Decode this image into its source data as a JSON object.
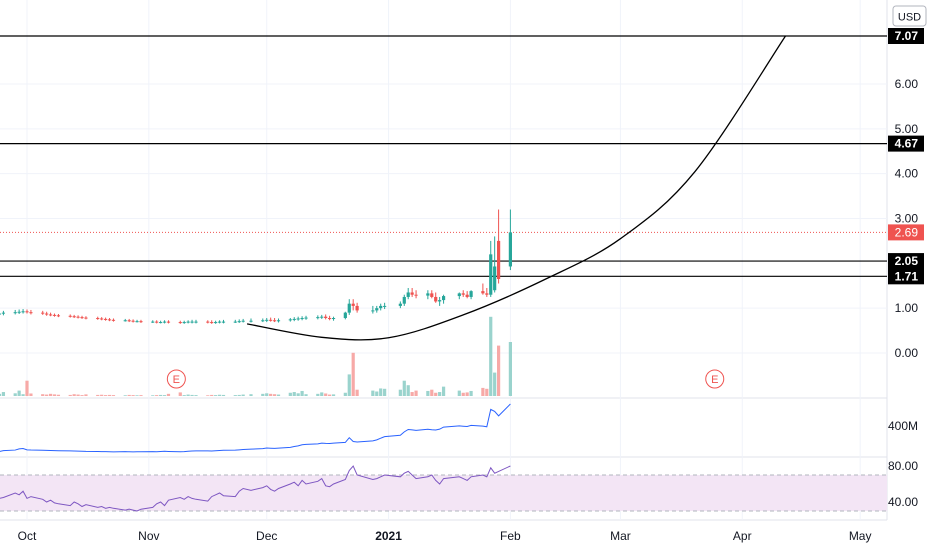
{
  "chart_data": {
    "type": "candlestick",
    "currency": "USD",
    "price_axis": {
      "ticks": [
        "7.07",
        "6.00",
        "5.00",
        "4.67",
        "4.00",
        "3.00",
        "2.69",
        "2.05",
        "1.71",
        "1.00",
        "0.00"
      ],
      "ylim": [
        -0.4,
        7.7
      ]
    },
    "x_axis": {
      "labels": [
        "Oct",
        "Nov",
        "Dec",
        "2021",
        "Feb",
        "Mar",
        "Apr",
        "May"
      ],
      "dates": [
        "2020-10-01",
        "2020-11-01",
        "2020-12-01",
        "2021-01-01",
        "2021-02-01",
        "2021-03-01",
        "2021-04-01",
        "2021-05-01"
      ]
    },
    "last_price": {
      "value": "2.69",
      "color": "#ef5350"
    },
    "horizontal_levels": [
      {
        "value": "7.07",
        "color": "#000000"
      },
      {
        "value": "4.67",
        "color": "#000000"
      },
      {
        "value": "2.05",
        "color": "#000000"
      },
      {
        "value": "1.71",
        "color": "#000000"
      }
    ],
    "cup_curve": [
      [
        "2020-11-26",
        0.65
      ],
      [
        "2020-12-15",
        0.35
      ],
      [
        "2021-01-01",
        0.34
      ],
      [
        "2021-01-20",
        0.85
      ],
      [
        "2021-02-10",
        1.65
      ],
      [
        "2021-03-01",
        2.55
      ],
      [
        "2021-03-20",
        4.05
      ],
      [
        "2021-04-12",
        7.07
      ]
    ],
    "candles": {
      "dates": [
        "2020-09-23",
        "2020-09-24",
        "2020-09-25",
        "2020-09-28",
        "2020-09-29",
        "2020-09-30",
        "2020-10-01",
        "2020-10-02",
        "2020-10-05",
        "2020-10-06",
        "2020-10-07",
        "2020-10-08",
        "2020-10-09",
        "2020-10-12",
        "2020-10-13",
        "2020-10-14",
        "2020-10-15",
        "2020-10-16",
        "2020-10-19",
        "2020-10-20",
        "2020-10-21",
        "2020-10-22",
        "2020-10-23",
        "2020-10-26",
        "2020-10-27",
        "2020-10-28",
        "2020-10-29",
        "2020-10-30",
        "2020-11-02",
        "2020-11-03",
        "2020-11-04",
        "2020-11-05",
        "2020-11-06",
        "2020-11-09",
        "2020-11-10",
        "2020-11-11",
        "2020-11-12",
        "2020-11-13",
        "2020-11-16",
        "2020-11-17",
        "2020-11-18",
        "2020-11-19",
        "2020-11-20",
        "2020-11-23",
        "2020-11-24",
        "2020-11-25",
        "2020-11-27",
        "2020-11-30",
        "2020-12-01",
        "2020-12-02",
        "2020-12-03",
        "2020-12-04",
        "2020-12-07",
        "2020-12-08",
        "2020-12-09",
        "2020-12-10",
        "2020-12-11",
        "2020-12-14",
        "2020-12-15",
        "2020-12-16",
        "2020-12-17",
        "2020-12-18",
        "2020-12-21",
        "2020-12-22",
        "2020-12-23",
        "2020-12-24",
        "2020-12-28",
        "2020-12-29",
        "2020-12-30",
        "2020-12-31",
        "2021-01-04",
        "2021-01-05",
        "2021-01-06",
        "2021-01-07",
        "2021-01-08",
        "2021-01-11",
        "2021-01-12",
        "2021-01-13",
        "2021-01-14",
        "2021-01-15",
        "2021-01-19",
        "2021-01-20",
        "2021-01-21",
        "2021-01-22",
        "2021-01-25",
        "2021-01-26",
        "2021-01-27",
        "2021-01-28",
        "2021-01-29",
        "2021-02-01"
      ],
      "open": [
        0.85,
        0.87,
        0.88,
        0.9,
        0.91,
        0.92,
        0.93,
        0.91,
        0.9,
        0.88,
        0.86,
        0.85,
        0.84,
        0.83,
        0.82,
        0.81,
        0.8,
        0.79,
        0.78,
        0.77,
        0.76,
        0.75,
        0.74,
        0.73,
        0.73,
        0.72,
        0.71,
        0.71,
        0.7,
        0.7,
        0.69,
        0.69,
        0.7,
        0.69,
        0.68,
        0.69,
        0.7,
        0.7,
        0.7,
        0.69,
        0.68,
        0.69,
        0.7,
        0.7,
        0.7,
        0.71,
        0.72,
        0.72,
        0.73,
        0.74,
        0.73,
        0.72,
        0.73,
        0.75,
        0.76,
        0.77,
        0.78,
        0.79,
        0.8,
        0.81,
        0.78,
        0.76,
        0.78,
        0.9,
        1.1,
        1.05,
        0.95,
        0.95,
        1.0,
        1.05,
        1.05,
        1.1,
        1.25,
        1.35,
        1.3,
        1.28,
        1.33,
        1.25,
        1.15,
        1.18,
        1.27,
        1.33,
        1.3,
        1.25,
        1.38,
        1.33,
        1.3,
        1.4,
        2.5,
        1.93
      ],
      "high": [
        0.9,
        0.92,
        0.94,
        0.96,
        0.97,
        0.98,
        0.97,
        0.96,
        0.94,
        0.92,
        0.9,
        0.88,
        0.87,
        0.86,
        0.85,
        0.84,
        0.83,
        0.82,
        0.81,
        0.8,
        0.79,
        0.78,
        0.77,
        0.76,
        0.76,
        0.75,
        0.74,
        0.74,
        0.73,
        0.73,
        0.72,
        0.73,
        0.73,
        0.72,
        0.72,
        0.73,
        0.74,
        0.74,
        0.73,
        0.73,
        0.72,
        0.73,
        0.74,
        0.74,
        0.75,
        0.76,
        0.77,
        0.77,
        0.78,
        0.79,
        0.78,
        0.77,
        0.78,
        0.8,
        0.81,
        0.82,
        0.83,
        0.84,
        0.85,
        0.86,
        0.83,
        0.81,
        0.92,
        1.2,
        1.2,
        1.12,
        1.05,
        1.05,
        1.1,
        1.12,
        1.15,
        1.3,
        1.45,
        1.45,
        1.4,
        1.4,
        1.4,
        1.35,
        1.25,
        1.3,
        1.35,
        1.4,
        1.38,
        1.4,
        1.55,
        1.45,
        2.5,
        2.6,
        3.2,
        3.2
      ],
      "low": [
        0.8,
        0.83,
        0.84,
        0.86,
        0.87,
        0.88,
        0.88,
        0.86,
        0.85,
        0.83,
        0.82,
        0.81,
        0.8,
        0.79,
        0.78,
        0.77,
        0.76,
        0.75,
        0.74,
        0.73,
        0.72,
        0.71,
        0.7,
        0.7,
        0.69,
        0.68,
        0.68,
        0.67,
        0.67,
        0.66,
        0.66,
        0.66,
        0.66,
        0.65,
        0.65,
        0.66,
        0.66,
        0.66,
        0.66,
        0.65,
        0.65,
        0.66,
        0.66,
        0.67,
        0.67,
        0.68,
        0.68,
        0.69,
        0.69,
        0.7,
        0.69,
        0.68,
        0.7,
        0.71,
        0.72,
        0.73,
        0.74,
        0.75,
        0.76,
        0.75,
        0.73,
        0.72,
        0.75,
        0.85,
        0.95,
        0.9,
        0.88,
        0.9,
        0.95,
        0.98,
        1.0,
        1.05,
        1.2,
        1.25,
        1.22,
        1.2,
        1.22,
        1.12,
        1.05,
        1.1,
        1.2,
        1.25,
        1.22,
        1.2,
        1.3,
        1.25,
        1.25,
        1.35,
        1.55,
        1.85
      ],
      "close": [
        0.87,
        0.88,
        0.9,
        0.91,
        0.92,
        0.93,
        0.91,
        0.9,
        0.88,
        0.86,
        0.85,
        0.84,
        0.83,
        0.82,
        0.81,
        0.8,
        0.79,
        0.78,
        0.77,
        0.76,
        0.75,
        0.74,
        0.73,
        0.73,
        0.72,
        0.71,
        0.71,
        0.7,
        0.7,
        0.69,
        0.69,
        0.7,
        0.69,
        0.68,
        0.69,
        0.7,
        0.7,
        0.7,
        0.69,
        0.68,
        0.69,
        0.7,
        0.7,
        0.7,
        0.71,
        0.72,
        0.72,
        0.73,
        0.74,
        0.73,
        0.72,
        0.73,
        0.75,
        0.76,
        0.77,
        0.78,
        0.79,
        0.8,
        0.81,
        0.78,
        0.76,
        0.78,
        0.9,
        1.1,
        1.05,
        0.95,
        0.95,
        1.0,
        1.05,
        1.05,
        1.1,
        1.25,
        1.35,
        1.3,
        1.28,
        1.33,
        1.25,
        1.15,
        1.18,
        1.27,
        1.33,
        1.3,
        1.25,
        1.38,
        1.33,
        1.3,
        2.2,
        1.93,
        1.65,
        2.69
      ]
    },
    "earnings_markers": [
      {
        "date": "2020-11-08",
        "label": "E"
      },
      {
        "date": "2021-03-25",
        "label": "E"
      }
    ],
    "volume_pane": {
      "note": "relative volume (0-1)",
      "values": [
        0.18,
        0.12,
        0.22,
        0.15,
        0.3,
        0.1,
        0.85,
        0.14,
        0.1,
        0.08,
        0.12,
        0.09,
        0.07,
        0.06,
        0.1,
        0.08,
        0.05,
        0.09,
        0.06,
        0.07,
        0.05,
        0.06,
        0.05,
        0.04,
        0.06,
        0.05,
        0.04,
        0.05,
        0.04,
        0.05,
        0.06,
        0.05,
        0.12,
        0.2,
        0.05,
        0.08,
        0.06,
        0.05,
        0.04,
        0.06,
        0.05,
        0.07,
        0.06,
        0.05,
        0.06,
        0.08,
        0.1,
        0.12,
        0.15,
        0.12,
        0.1,
        0.08,
        0.18,
        0.22,
        0.15,
        0.28,
        0.1,
        0.12,
        0.2,
        0.14,
        0.08,
        0.09,
        0.18,
        1.2,
        2.4,
        0.35,
        0.3,
        0.25,
        0.42,
        0.4,
        0.35,
        0.85,
        0.6,
        0.22,
        0.3,
        0.28,
        0.35,
        0.18,
        0.22,
        0.52,
        0.3,
        0.18,
        0.2,
        0.28,
        0.45,
        0.4,
        4.4,
        1.3,
        2.8,
        3.0
      ]
    },
    "obv_pane": {
      "label": "400M",
      "color": "#2962ff"
    },
    "rsi_pane": {
      "ticks": [
        "80.00",
        "40.00"
      ],
      "upper_band": 70,
      "lower_band": 30,
      "ylim": [
        25,
        90
      ],
      "color": "#7e57c2",
      "values": [
        43,
        44,
        45,
        50,
        48,
        52,
        44,
        46,
        43,
        40,
        42,
        39,
        38,
        36,
        40,
        38,
        35,
        37,
        34,
        35,
        33,
        34,
        33,
        31,
        32,
        31,
        30,
        32,
        34,
        38,
        40,
        36,
        42,
        45,
        43,
        46,
        44,
        43,
        41,
        46,
        48,
        50,
        47,
        46,
        52,
        55,
        53,
        56,
        58,
        54,
        52,
        55,
        60,
        62,
        58,
        64,
        60,
        63,
        66,
        58,
        57,
        60,
        65,
        75,
        80,
        70,
        65,
        66,
        68,
        70,
        68,
        72,
        74,
        70,
        66,
        68,
        70,
        64,
        60,
        66,
        68,
        66,
        64,
        68,
        70,
        68,
        78,
        72,
        74,
        80
      ]
    },
    "colors": {
      "up": "#26a69a",
      "down": "#ef5350",
      "level_line": "#000000",
      "grid": "#f0f3fa",
      "rsi_fill": "#f3e5f5"
    }
  }
}
